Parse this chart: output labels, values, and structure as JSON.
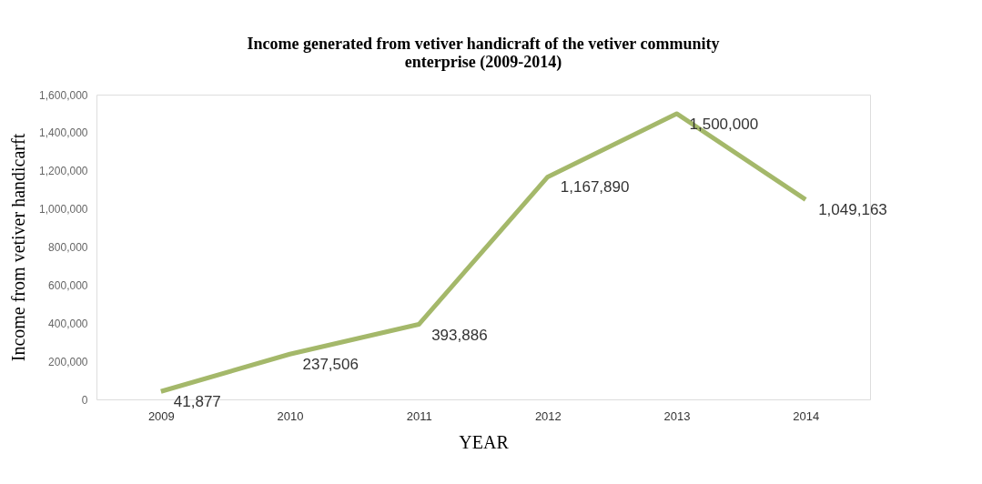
{
  "chart_data": {
    "type": "line",
    "title": "Income generated from vetiver handicraft of the vetiver community enterprise (2009-2014)",
    "xlabel": "YEAR",
    "ylabel": "Income from vetiver handicarft",
    "categories": [
      "2009",
      "2010",
      "2011",
      "2012",
      "2013",
      "2014"
    ],
    "series": [
      {
        "color": "#a4b86a",
        "values": [
          41877,
          237506,
          393886,
          1167890,
          1500000,
          1049163
        ],
        "value_labels": [
          "41,877",
          "237,506",
          "393,886",
          "1,167,890",
          "1,500,000",
          "1,049,163"
        ]
      }
    ],
    "ylim": [
      0,
      1600000
    ],
    "yticks": [
      0,
      {
        "value": 200000,
        "label": "200,000"
      },
      {
        "value": 400000,
        "label": "400,000"
      },
      {
        "value": 600000,
        "label": "600,000"
      },
      {
        "value": 800000,
        "label": "800,000"
      },
      {
        "value": 1000000,
        "label": "1,000,000"
      },
      {
        "value": 1200000,
        "label": "1,200,000"
      },
      {
        "value": 1400000,
        "label": "1,400,000"
      },
      {
        "value": 1600000,
        "label": "1,600,000"
      }
    ],
    "grid": false,
    "legend": false,
    "marker": "none",
    "line_style": "solid"
  }
}
